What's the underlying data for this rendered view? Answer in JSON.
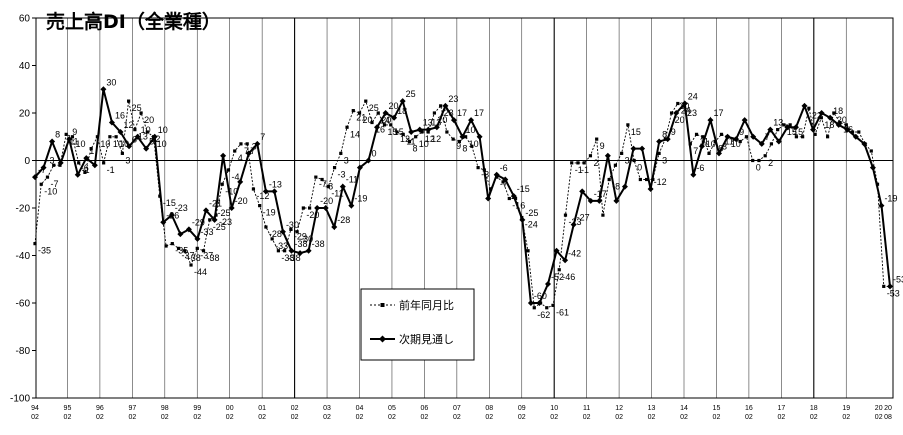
{
  "chart_data": {
    "type": "line",
    "title": "売上高DI（全業種）",
    "xlabel": "",
    "ylabel": "",
    "ylim": [
      -100,
      60
    ],
    "yticks": [
      60,
      40,
      20,
      0,
      -20,
      -40,
      -60,
      -80,
      -100
    ],
    "x_tick_labels": [
      [
        "94",
        "02"
      ],
      [
        "95",
        "02"
      ],
      [
        "96",
        "02"
      ],
      [
        "97",
        "02"
      ],
      [
        "98",
        "02"
      ],
      [
        "99",
        "02"
      ],
      [
        "00",
        "02"
      ],
      [
        "01",
        "02"
      ],
      [
        "02",
        "02"
      ],
      [
        "03",
        "02"
      ],
      [
        "04",
        "02"
      ],
      [
        "05",
        "02"
      ],
      [
        "06",
        "02"
      ],
      [
        "07",
        "02"
      ],
      [
        "08",
        "02"
      ],
      [
        "09",
        "02"
      ],
      [
        "10",
        "02"
      ],
      [
        "11",
        "02"
      ],
      [
        "12",
        "02"
      ],
      [
        "13",
        "02"
      ],
      [
        "14",
        "02"
      ],
      [
        "15",
        "02"
      ],
      [
        "16",
        "02"
      ],
      [
        "17",
        "02"
      ],
      [
        "18",
        "02"
      ],
      [
        "19",
        "02"
      ],
      [
        "20",
        "02"
      ],
      [
        "20",
        "08"
      ]
    ],
    "grid": "vertical year lines",
    "legend_position": "lower-center",
    "series": [
      {
        "name": "前年同月比",
        "style": "dashed-square",
        "color": "#000000",
        "values": [
          -35,
          -10,
          -7,
          -2,
          -2,
          11,
          10,
          -1,
          -5,
          5,
          10,
          -1,
          10,
          10,
          3,
          25,
          13,
          20,
          12,
          10,
          -15,
          -36,
          -35,
          -37,
          -38,
          -44,
          -37,
          -38,
          -25,
          -23,
          -10,
          -4,
          4,
          7,
          7,
          -12,
          -19,
          -28,
          -33,
          -38,
          -38,
          -29,
          -30,
          -20,
          -20,
          -7,
          -8,
          -11,
          -3,
          3,
          14,
          21,
          20,
          25,
          16,
          20,
          15,
          15,
          12,
          11,
          8,
          10,
          12,
          12,
          20,
          23,
          12,
          9,
          8,
          10,
          6,
          -3,
          -4,
          -12,
          -7,
          -9,
          -16,
          -16,
          -24,
          -38,
          -62,
          -60,
          -62,
          -61,
          -46,
          -23,
          -1,
          -1,
          -1,
          2,
          9,
          -23,
          -8,
          -2,
          3,
          15,
          0,
          -8,
          -8,
          -8,
          3,
          9,
          20,
          24,
          23,
          7,
          11,
          10,
          3,
          8,
          11,
          10,
          9,
          8,
          10,
          0,
          0,
          2,
          7,
          13,
          15,
          15,
          10,
          10,
          22,
          11,
          18,
          10,
          20,
          16,
          15,
          12,
          12,
          7,
          4,
          -10,
          -53,
          -53
        ],
        "labels_shown": [
          -35,
          -10,
          -7,
          -1,
          10,
          11,
          10,
          -1,
          10,
          3,
          25,
          12,
          20,
          10,
          -15,
          -35,
          -37,
          -38,
          -44,
          -37,
          -38,
          -25,
          -23,
          2,
          -4,
          7,
          -12,
          -19,
          -28,
          -33,
          -38,
          -29,
          -30,
          -20,
          -7,
          -11,
          -3,
          14,
          21,
          20,
          25,
          16,
          20,
          15,
          12,
          8,
          20,
          23,
          12,
          8,
          10,
          -3,
          -7,
          -16,
          -24,
          -38,
          -62,
          -61,
          -46,
          -1,
          -1,
          2,
          9,
          -23,
          -8,
          3,
          15,
          0,
          -8,
          3,
          9,
          20,
          24,
          23,
          7,
          11,
          10,
          3,
          8,
          11,
          10,
          0,
          2,
          13,
          15,
          15,
          10,
          22,
          11,
          18,
          10,
          20,
          16,
          15,
          12,
          7,
          4,
          -10,
          -53
        ]
      },
      {
        "name": "次期見通し",
        "style": "solid-diamond",
        "color": "#000000",
        "values": [
          -7,
          -3,
          8,
          -1,
          9,
          -6,
          1,
          -2,
          30,
          16,
          12,
          6,
          10,
          5,
          10,
          -26,
          -23,
          -31,
          -29,
          -33,
          -21,
          -25,
          2,
          -20,
          -9,
          3,
          7,
          -13,
          -13,
          -30,
          -38,
          -39,
          -38,
          -20,
          -20,
          -28,
          -11,
          -19,
          -3,
          0,
          14,
          20,
          18,
          25,
          12,
          13,
          13,
          14,
          23,
          17,
          10,
          17,
          10,
          -16,
          -6,
          -8,
          -15,
          -25,
          -60,
          -60,
          -52,
          -38,
          -42,
          -27,
          -13,
          -17,
          -17,
          2,
          -17,
          -11,
          5,
          5,
          -12,
          8,
          9,
          20,
          24,
          -6,
          6,
          17,
          3,
          10,
          9,
          17,
          10,
          7,
          13,
          8,
          14,
          14,
          23,
          13,
          20,
          18,
          15,
          13,
          10,
          7,
          -3,
          -19,
          -53
        ],
        "labels_shown": [
          -7,
          8,
          9,
          -6,
          1,
          30,
          16,
          12,
          6,
          10,
          -26,
          -23,
          -29,
          -33,
          -21,
          -25,
          9,
          -20,
          3,
          7,
          -13,
          -30,
          -38,
          -20,
          -28,
          -19,
          0,
          20,
          18,
          25,
          13,
          17,
          10,
          -6,
          -15,
          -25,
          -60,
          -52,
          -38,
          -42,
          -27,
          -17,
          -11,
          5,
          -12,
          24,
          -6,
          17,
          3,
          10,
          9,
          17,
          7,
          13,
          8,
          14,
          23,
          13,
          20,
          18,
          -3,
          -19,
          -53
        ]
      }
    ]
  }
}
